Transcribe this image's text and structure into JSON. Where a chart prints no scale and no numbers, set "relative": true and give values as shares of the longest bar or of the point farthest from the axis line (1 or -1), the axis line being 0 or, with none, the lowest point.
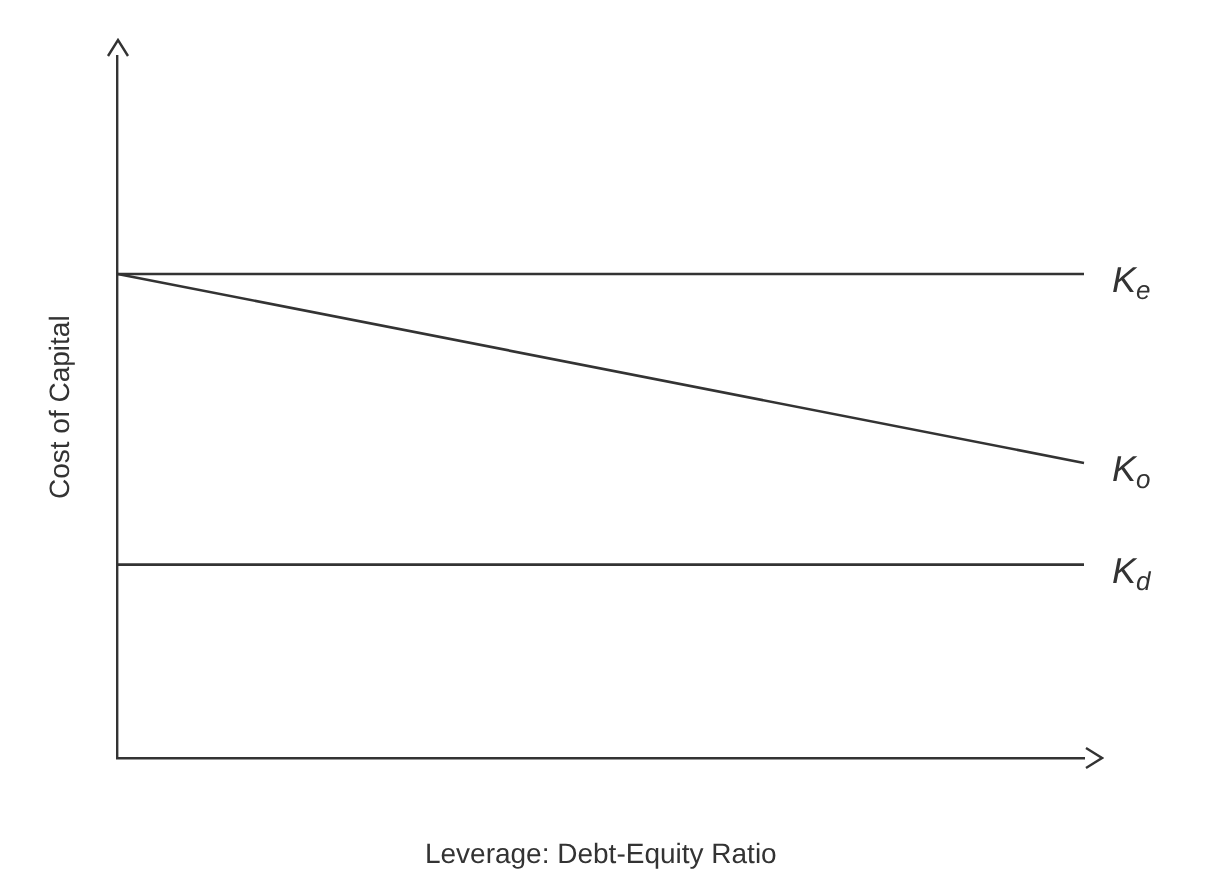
{
  "chart_data": {
    "type": "line",
    "relative": true,
    "xlabel": "Leverage: Debt-Equity Ratio",
    "ylabel": "Cost of Capital",
    "categories": [
      null,
      null
    ],
    "series": [
      {
        "name": "K$_{e}$",
        "color": "#333333",
        "values": [
          1,
          1
        ]
      },
      {
        "name": "K$_{o}$",
        "color": "#333333",
        "values": [
          1,
          0.61
        ]
      },
      {
        "name": "K$_{d}$",
        "color": "#333333",
        "values": [
          0.4,
          0.4
        ]
      }
    ],
    "legend": false,
    "grid": false,
    "marker": "none",
    "line_style": "solid"
  }
}
